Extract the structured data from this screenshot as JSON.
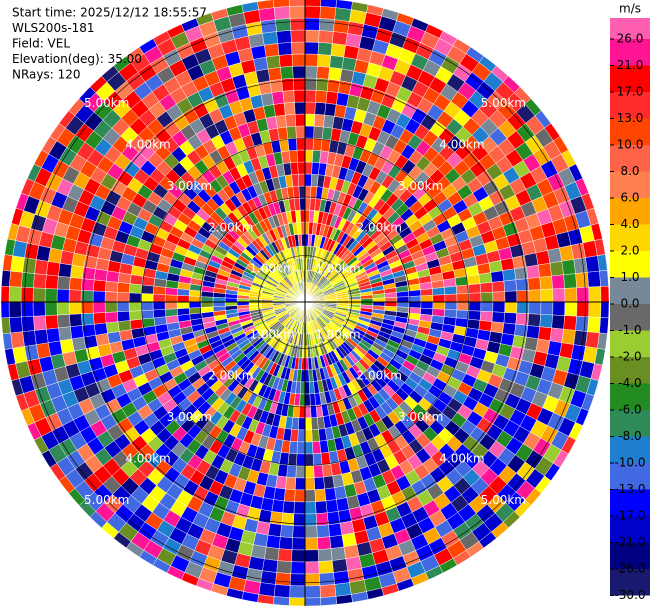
{
  "chart_data": {
    "type": "ppi",
    "header": [
      "Start time: 2025/12/12 18:55:57",
      "WLS200s-181",
      "Field: VEL",
      "Elevation(deg): 35.00",
      "NRays: 120"
    ],
    "range_rings": [
      {
        "value": 1,
        "label": "1.00km"
      },
      {
        "value": 2,
        "label": "2.00km"
      },
      {
        "value": 3,
        "label": "3.00km"
      },
      {
        "value": 4,
        "label": "4.00km"
      },
      {
        "value": 5,
        "label": "5.00km"
      }
    ],
    "colorbar": {
      "title": "m/s",
      "ticks": [
        {
          "value": 26,
          "label": "26.0"
        },
        {
          "value": 21,
          "label": "21.0"
        },
        {
          "value": 17,
          "label": "17.0"
        },
        {
          "value": 13,
          "label": "13.0"
        },
        {
          "value": 10,
          "label": "10.0"
        },
        {
          "value": 8,
          "label": "8.0"
        },
        {
          "value": 6,
          "label": "6.0"
        },
        {
          "value": 4,
          "label": "4.0"
        },
        {
          "value": 2,
          "label": "2.0"
        },
        {
          "value": 1,
          "label": "1.0"
        },
        {
          "value": 0,
          "label": "0.0"
        },
        {
          "value": -1,
          "label": "-1.0"
        },
        {
          "value": -2,
          "label": "-2.0"
        },
        {
          "value": -4,
          "label": "-4.0"
        },
        {
          "value": -6,
          "label": "-6.0"
        },
        {
          "value": -8,
          "label": "-8.0"
        },
        {
          "value": -10,
          "label": "-10.0"
        },
        {
          "value": -13,
          "label": "-13.0"
        },
        {
          "value": -17,
          "label": "-17.0"
        },
        {
          "value": -21,
          "label": "-21.0"
        },
        {
          "value": -26,
          "label": "-26.0"
        },
        {
          "value": -30,
          "label": "-30.0"
        }
      ],
      "colors": [
        "#ff5fb0",
        "#ff1493",
        "#ff0000",
        "#ff2a2a",
        "#ff4500",
        "#ff6347",
        "#ff7f50",
        "#ffa500",
        "#ffd700",
        "#ffff00",
        "#778899",
        "#696969",
        "#9acd32",
        "#6b8e23",
        "#228b22",
        "#2e8b57",
        "#1e7fd0",
        "#4169e1",
        "#0000ff",
        "#0000cd",
        "#000080",
        "#191970"
      ]
    }
  }
}
